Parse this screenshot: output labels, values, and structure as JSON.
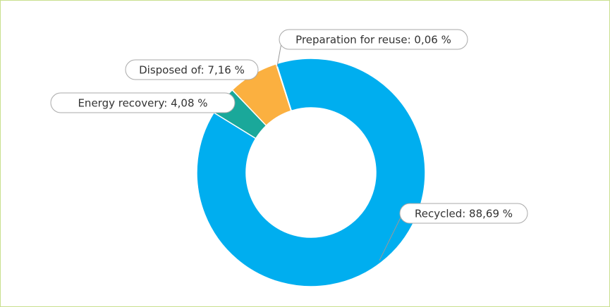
{
  "chart_data": {
    "type": "pie",
    "values": [
      88.69,
      4.08,
      7.16,
      0.06
    ],
    "value_labels": [
      "Recycled: 88,69 %",
      "Energy recovery: 4,08 %",
      "Disposed of: 7,16 %",
      "Preparation for reuse: 0,06 %"
    ],
    "colors": [
      "#00aeef",
      "#1aa89a",
      "#fbb040",
      "#8cc63f"
    ]
  }
}
